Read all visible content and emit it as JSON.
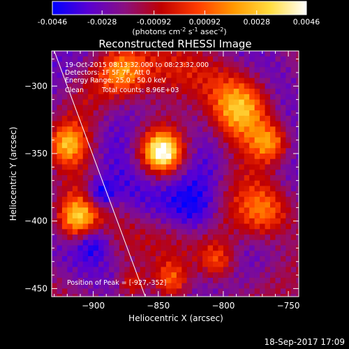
{
  "colorbar": {
    "ticks": [
      "-0.0046",
      "-0.0028",
      "-0.00092",
      "0.00092",
      "0.0028",
      "0.0046"
    ],
    "tick_values": [
      -0.0046,
      -0.0028,
      -0.00092,
      0.00092,
      0.0028,
      0.0046
    ],
    "range": [
      -0.0046,
      0.0046
    ],
    "unit_prefix": "(photons cm",
    "unit_sup1": "-2",
    "unit_mid1": " s",
    "unit_sup2": "-1",
    "unit_mid2": " asec",
    "unit_sup3": "-2",
    "unit_suffix": ")",
    "colormap": [
      "#0000ff",
      "#5a00d2",
      "#8a1080",
      "#c00000",
      "#ff3c00",
      "#ff9900",
      "#ffdd40",
      "#ffffff"
    ]
  },
  "chart_data": {
    "type": "heatmap",
    "title": "Reconstructed RHESSI Image",
    "xlabel": "Heliocentric X (arcsec)",
    "ylabel": "Heliocentric Y (arcsec)",
    "xlim": [
      -932,
      -742
    ],
    "ylim": [
      -456,
      -274
    ],
    "xticks": [
      -900,
      -850,
      -800,
      -750
    ],
    "yticks": [
      -300,
      -350,
      -400,
      -450
    ],
    "annotations": {
      "time_range": "19-Oct-2015 08:13:32.000 to 08:23:32.000",
      "detectors": "Detectors: 1F 5F 7F, Att 0",
      "energy": "Energy Range: 25.0 - 50.0 keV",
      "method": "Clean",
      "counts": "Total counts: 8.96E+03",
      "peak": "Position of Peak = [-927,-352]"
    },
    "peak": [
      -927,
      -352
    ],
    "sources": [
      {
        "x": -847,
        "y": -349,
        "r": 9,
        "amp": 1.0
      },
      {
        "x": -840,
        "y": -315,
        "r": 24,
        "amp": 0.35
      },
      {
        "x": -912,
        "y": -398,
        "r": 11,
        "amp": 0.95
      },
      {
        "x": -920,
        "y": -343,
        "r": 10,
        "amp": 0.75
      },
      {
        "x": -787,
        "y": -317,
        "r": 15,
        "amp": 0.75
      },
      {
        "x": -764,
        "y": -342,
        "r": 10,
        "amp": 0.7
      },
      {
        "x": -767,
        "y": -393,
        "r": 14,
        "amp": 0.75
      },
      {
        "x": -840,
        "y": -444,
        "r": 10,
        "amp": 0.7
      },
      {
        "x": -805,
        "y": -430,
        "r": 10,
        "amp": 0.6
      },
      {
        "x": -878,
        "y": -289,
        "r": 12,
        "amp": 0.55
      },
      {
        "x": -870,
        "y": -446,
        "r": 8,
        "amp": 0.5
      },
      {
        "x": -895,
        "y": -380,
        "r": 8,
        "amp": -0.55
      },
      {
        "x": -900,
        "y": -415,
        "r": 10,
        "amp": -0.5
      },
      {
        "x": -820,
        "y": -395,
        "r": 14,
        "amp": -0.4
      }
    ],
    "limb_line": {
      "x": [
        -930,
        -860
      ],
      "y": [
        -274,
        -456
      ]
    }
  },
  "footer": {
    "timestamp": "18-Sep-2017 17:09"
  }
}
